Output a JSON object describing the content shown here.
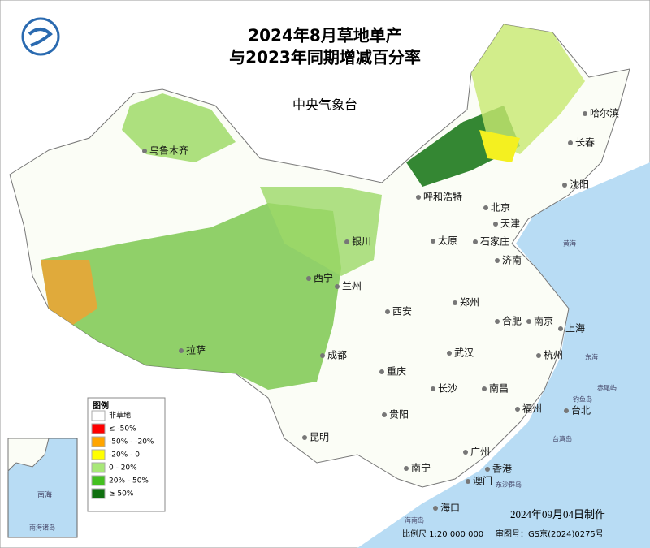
{
  "header": {
    "title_line1": "2024年8月草地单产",
    "title_line2": "与2023年同期增减百分率",
    "agency": "中央气象台"
  },
  "legend": {
    "title": "图例",
    "items": [
      {
        "label": "非草地",
        "color": "#ffffff"
      },
      {
        "label": "≤ -50%",
        "color": "#ff0000"
      },
      {
        "label": "-50% - -20%",
        "color": "#ffa500"
      },
      {
        "label": "-20% - 0",
        "color": "#ffff00"
      },
      {
        "label": "0 - 20%",
        "color": "#a8e878"
      },
      {
        "label": "20% - 50%",
        "color": "#44c020"
      },
      {
        "label": "≥ 50%",
        "color": "#107010"
      }
    ]
  },
  "cities": [
    "乌鲁木齐",
    "哈尔滨",
    "长春",
    "沈阳",
    "呼和浩特",
    "北京",
    "天津",
    "银川",
    "太原",
    "石家庄",
    "济南",
    "西宁",
    "兰州",
    "郑州",
    "西安",
    "合肥",
    "南京",
    "上海",
    "拉萨",
    "成都",
    "武汉",
    "杭州",
    "重庆",
    "长沙",
    "南昌",
    "福州",
    "台北",
    "贵阳",
    "昆明",
    "南宁",
    "广州",
    "香港",
    "澳门",
    "海口"
  ],
  "map_labels": {
    "yellow_sea": "黄海",
    "east_sea": "东海",
    "diaoyu": "钓鱼岛",
    "chiwei": "赤尾屿",
    "taiwan": "台湾岛",
    "dongsha": "东沙群岛",
    "hainan": "海南岛",
    "south_sea": "南海",
    "south_islands": "南海诸岛"
  },
  "footer": {
    "date": "2024年09月04日制作",
    "scale": "比例尺 1:20 000 000",
    "approval": "审图号：GS京(2024)0275号"
  }
}
